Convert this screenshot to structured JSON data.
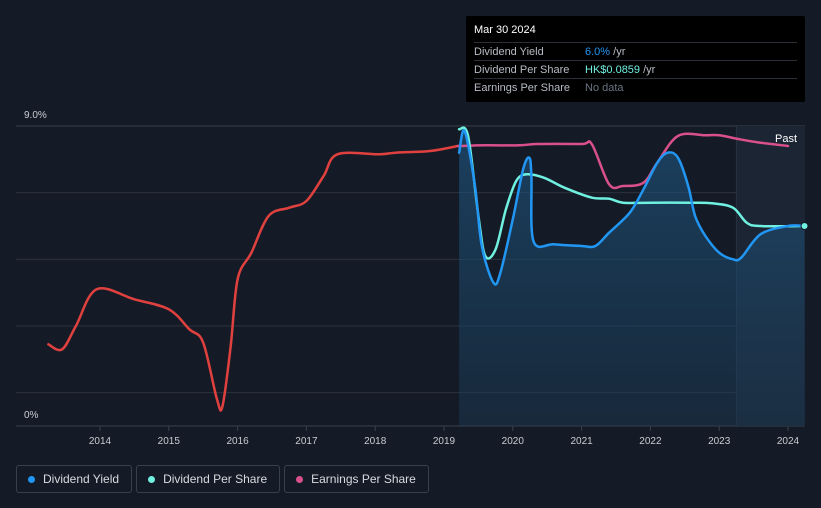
{
  "tooltip": {
    "date": "Mar 30 2024",
    "rows": [
      {
        "label": "Dividend Yield",
        "value": "6.0%",
        "unit": " /yr",
        "color": "#2196f3"
      },
      {
        "label": "Dividend Per Share",
        "value": "HK$0.0859",
        "unit": " /yr",
        "color": "#6ff0e0"
      },
      {
        "label": "Earnings Per Share",
        "value": "No data",
        "unit": "",
        "color": "#6b7280"
      }
    ]
  },
  "legend": [
    {
      "label": "Dividend Yield",
      "color": "#2196f3"
    },
    {
      "label": "Dividend Per Share",
      "color": "#6ff0e0"
    },
    {
      "label": "Earnings Per Share",
      "color": "#d9508a"
    }
  ],
  "chart_data": {
    "type": "line",
    "y_top_label": "9.0%",
    "y_bottom_label": "0%",
    "ylim": [
      0,
      9
    ],
    "xlim": [
      2013.0,
      2024.25
    ],
    "x_ticks": [
      "2014",
      "2015",
      "2016",
      "2017",
      "2018",
      "2019",
      "2020",
      "2021",
      "2022",
      "2023",
      "2024"
    ],
    "past_label": "Past",
    "past_region_start": 2023.25,
    "grid": true,
    "colors": {
      "dividend_yield": "#2196f3",
      "dividend_per_share": "#6ff0e0",
      "earnings_per_share": "#d9508a",
      "history": "#e0413f"
    },
    "series": [
      {
        "key": "history",
        "points": [
          [
            2013.25,
            2.45
          ],
          [
            2013.45,
            2.3
          ],
          [
            2013.65,
            3.0
          ],
          [
            2013.95,
            4.1
          ],
          [
            2014.5,
            3.8
          ],
          [
            2015.0,
            3.5
          ],
          [
            2015.3,
            2.9
          ],
          [
            2015.5,
            2.5
          ],
          [
            2015.7,
            0.8
          ],
          [
            2015.78,
            0.6
          ],
          [
            2015.9,
            2.4
          ],
          [
            2016.0,
            4.4
          ],
          [
            2016.2,
            5.2
          ],
          [
            2016.45,
            6.3
          ],
          [
            2016.75,
            6.55
          ],
          [
            2017.0,
            6.75
          ],
          [
            2017.25,
            7.5
          ],
          [
            2017.45,
            8.15
          ],
          [
            2018.05,
            8.15
          ],
          [
            2018.3,
            8.2
          ],
          [
            2018.8,
            8.25
          ],
          [
            2019.2,
            8.4
          ]
        ]
      },
      {
        "key": "dividend_yield",
        "name": "Dividend Yield",
        "points": [
          [
            2019.22,
            8.2
          ],
          [
            2019.3,
            8.85
          ],
          [
            2019.45,
            7.2
          ],
          [
            2019.55,
            5.4
          ],
          [
            2019.72,
            4.3
          ],
          [
            2019.82,
            4.6
          ],
          [
            2020.0,
            6.2
          ],
          [
            2020.15,
            7.7
          ],
          [
            2020.24,
            8.05
          ],
          [
            2020.27,
            7.5
          ],
          [
            2020.3,
            5.55
          ],
          [
            2020.6,
            5.45
          ],
          [
            2021.0,
            5.4
          ],
          [
            2021.2,
            5.4
          ],
          [
            2021.4,
            5.8
          ],
          [
            2021.7,
            6.4
          ],
          [
            2021.9,
            7.1
          ],
          [
            2022.1,
            7.9
          ],
          [
            2022.25,
            8.2
          ],
          [
            2022.4,
            8.05
          ],
          [
            2022.55,
            7.2
          ],
          [
            2022.65,
            6.3
          ],
          [
            2022.8,
            5.7
          ],
          [
            2023.0,
            5.2
          ],
          [
            2023.2,
            5.0
          ],
          [
            2023.32,
            5.05
          ],
          [
            2023.6,
            5.75
          ],
          [
            2024.0,
            6.0
          ],
          [
            2024.24,
            6.0
          ]
        ]
      },
      {
        "key": "dividend_per_share",
        "name": "Dividend Per Share",
        "points": [
          [
            2019.22,
            8.9
          ],
          [
            2019.35,
            8.7
          ],
          [
            2019.5,
            6.3
          ],
          [
            2019.6,
            5.1
          ],
          [
            2019.75,
            5.3
          ],
          [
            2019.9,
            6.5
          ],
          [
            2020.05,
            7.35
          ],
          [
            2020.2,
            7.55
          ],
          [
            2020.45,
            7.45
          ],
          [
            2020.75,
            7.15
          ],
          [
            2021.15,
            6.85
          ],
          [
            2021.4,
            6.82
          ],
          [
            2021.6,
            6.7
          ],
          [
            2022.0,
            6.7
          ],
          [
            2022.6,
            6.7
          ],
          [
            2022.9,
            6.68
          ],
          [
            2023.2,
            6.55
          ],
          [
            2023.4,
            6.1
          ],
          [
            2023.6,
            6.0
          ],
          [
            2024.24,
            6.0
          ]
        ]
      },
      {
        "key": "earnings_per_share",
        "name": "Earnings Per Share",
        "points": [
          [
            2019.2,
            8.4
          ],
          [
            2019.6,
            8.42
          ],
          [
            2020.1,
            8.42
          ],
          [
            2020.35,
            8.46
          ],
          [
            2021.0,
            8.46
          ],
          [
            2021.15,
            8.45
          ],
          [
            2021.4,
            7.25
          ],
          [
            2021.6,
            7.2
          ],
          [
            2021.9,
            7.3
          ],
          [
            2022.1,
            7.9
          ],
          [
            2022.4,
            8.7
          ],
          [
            2022.8,
            8.72
          ],
          [
            2023.0,
            8.72
          ],
          [
            2023.3,
            8.6
          ],
          [
            2023.6,
            8.5
          ],
          [
            2024.0,
            8.4
          ]
        ]
      }
    ]
  }
}
